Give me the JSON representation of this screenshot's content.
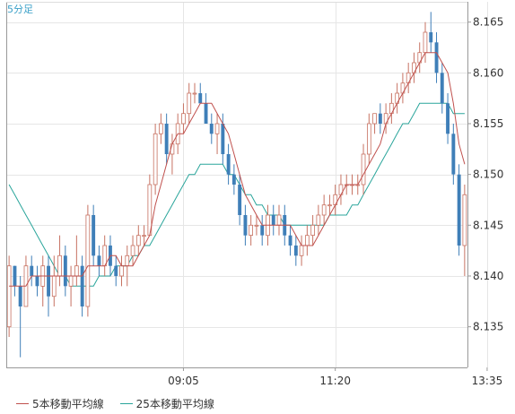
{
  "colors": {
    "candle_up_wick": "#c77262",
    "candle_down": "#3f7fb8",
    "ma5": "#c0504d",
    "ma25": "#2aa59b",
    "grid": "#e6e6e6",
    "axis": "#999999"
  },
  "chart_data": {
    "type": "candlestick",
    "period_label": "5分足",
    "ylim": [
      8.131,
      8.167
    ],
    "y_ticks": [
      "8.135",
      "8.140",
      "8.145",
      "8.150",
      "8.155",
      "8.160",
      "8.165"
    ],
    "x_tick_labels": [
      {
        "label": "09:05",
        "index": 31
      },
      {
        "label": "11:20",
        "index": 58
      },
      {
        "label": "13:35",
        "index": 85
      }
    ],
    "candles": [
      [
        8.135,
        8.142,
        8.134,
        8.141
      ],
      [
        8.141,
        8.141,
        8.138,
        8.139
      ],
      [
        8.139,
        8.14,
        8.132,
        8.137
      ],
      [
        8.137,
        8.142,
        8.137,
        8.141
      ],
      [
        8.141,
        8.142,
        8.139,
        8.14
      ],
      [
        8.14,
        8.141,
        8.138,
        8.139
      ],
      [
        8.139,
        8.142,
        8.137,
        8.141
      ],
      [
        8.141,
        8.142,
        8.136,
        8.138
      ],
      [
        8.138,
        8.142,
        8.137,
        8.14
      ],
      [
        8.14,
        8.144,
        8.139,
        8.142
      ],
      [
        8.142,
        8.143,
        8.138,
        8.139
      ],
      [
        8.139,
        8.141,
        8.137,
        8.14
      ],
      [
        8.14,
        8.144,
        8.139,
        8.141
      ],
      [
        8.141,
        8.142,
        8.136,
        8.137
      ],
      [
        8.137,
        8.147,
        8.136,
        8.146
      ],
      [
        8.146,
        8.147,
        8.141,
        8.142
      ],
      [
        8.142,
        8.143,
        8.14,
        8.141
      ],
      [
        8.141,
        8.144,
        8.14,
        8.143
      ],
      [
        8.143,
        8.144,
        8.14,
        8.141
      ],
      [
        8.141,
        8.142,
        8.139,
        8.14
      ],
      [
        8.14,
        8.142,
        8.139,
        8.141
      ],
      [
        8.141,
        8.143,
        8.139,
        8.142
      ],
      [
        8.142,
        8.144,
        8.141,
        8.143
      ],
      [
        8.143,
        8.145,
        8.142,
        8.144
      ],
      [
        8.144,
        8.145,
        8.143,
        8.144
      ],
      [
        8.144,
        8.15,
        8.144,
        8.149
      ],
      [
        8.149,
        8.155,
        8.148,
        8.154
      ],
      [
        8.154,
        8.156,
        8.153,
        8.155
      ],
      [
        8.155,
        8.156,
        8.151,
        8.152
      ],
      [
        8.152,
        8.154,
        8.15,
        8.153
      ],
      [
        8.153,
        8.156,
        8.152,
        8.155
      ],
      [
        8.155,
        8.157,
        8.154,
        8.156
      ],
      [
        8.156,
        8.159,
        8.155,
        8.158
      ],
      [
        8.158,
        8.159,
        8.157,
        8.158
      ],
      [
        8.158,
        8.159,
        8.157,
        8.157
      ],
      [
        8.157,
        8.158,
        8.155,
        8.155
      ],
      [
        8.155,
        8.156,
        8.153,
        8.154
      ],
      [
        8.154,
        8.156,
        8.152,
        8.155
      ],
      [
        8.155,
        8.156,
        8.151,
        8.152
      ],
      [
        8.152,
        8.153,
        8.149,
        8.15
      ],
      [
        8.15,
        8.151,
        8.148,
        8.149
      ],
      [
        8.149,
        8.15,
        8.145,
        8.146
      ],
      [
        8.146,
        8.147,
        8.143,
        8.144
      ],
      [
        8.144,
        8.146,
        8.143,
        8.145
      ],
      [
        8.145,
        8.146,
        8.144,
        8.145
      ],
      [
        8.145,
        8.146,
        8.143,
        8.144
      ],
      [
        8.144,
        8.147,
        8.143,
        8.146
      ],
      [
        8.146,
        8.147,
        8.144,
        8.145
      ],
      [
        8.145,
        8.147,
        8.144,
        8.146
      ],
      [
        8.146,
        8.147,
        8.143,
        8.144
      ],
      [
        8.144,
        8.145,
        8.142,
        8.143
      ],
      [
        8.143,
        8.144,
        8.141,
        8.142
      ],
      [
        8.142,
        8.144,
        8.141,
        8.143
      ],
      [
        8.143,
        8.145,
        8.142,
        8.144
      ],
      [
        8.144,
        8.146,
        8.143,
        8.145
      ],
      [
        8.145,
        8.147,
        8.144,
        8.146
      ],
      [
        8.146,
        8.148,
        8.145,
        8.147
      ],
      [
        8.147,
        8.148,
        8.146,
        8.147
      ],
      [
        8.147,
        8.149,
        8.146,
        8.148
      ],
      [
        8.148,
        8.15,
        8.147,
        8.149
      ],
      [
        8.149,
        8.15,
        8.148,
        8.149
      ],
      [
        8.149,
        8.15,
        8.148,
        8.149
      ],
      [
        8.149,
        8.15,
        8.148,
        8.149
      ],
      [
        8.149,
        8.153,
        8.148,
        8.152
      ],
      [
        8.152,
        8.156,
        8.151,
        8.155
      ],
      [
        8.155,
        8.156,
        8.154,
        8.156
      ],
      [
        8.156,
        8.157,
        8.154,
        8.155
      ],
      [
        8.155,
        8.157,
        8.154,
        8.156
      ],
      [
        8.156,
        8.158,
        8.155,
        8.157
      ],
      [
        8.157,
        8.159,
        8.156,
        8.158
      ],
      [
        8.158,
        8.16,
        8.157,
        8.159
      ],
      [
        8.159,
        8.161,
        8.158,
        8.16
      ],
      [
        8.16,
        8.162,
        8.159,
        8.161
      ],
      [
        8.161,
        8.163,
        8.16,
        8.162
      ],
      [
        8.162,
        8.165,
        8.161,
        8.164
      ],
      [
        8.164,
        8.166,
        8.162,
        8.163
      ],
      [
        8.163,
        8.164,
        8.159,
        8.16
      ],
      [
        8.16,
        8.161,
        8.156,
        8.157
      ],
      [
        8.157,
        8.158,
        8.153,
        8.154
      ],
      [
        8.154,
        8.155,
        8.149,
        8.15
      ],
      [
        8.15,
        8.151,
        8.142,
        8.143
      ],
      [
        8.143,
        8.149,
        8.14,
        8.148
      ]
    ],
    "ma5": [
      8.139,
      8.139,
      8.139,
      8.139,
      8.14,
      8.14,
      8.14,
      8.14,
      8.14,
      8.14,
      8.14,
      8.14,
      8.14,
      8.14,
      8.141,
      8.141,
      8.141,
      8.141,
      8.142,
      8.142,
      8.141,
      8.141,
      8.141,
      8.142,
      8.143,
      8.144,
      8.147,
      8.149,
      8.151,
      8.153,
      8.154,
      8.154,
      8.155,
      8.156,
      8.157,
      8.157,
      8.157,
      8.156,
      8.155,
      8.154,
      8.152,
      8.15,
      8.148,
      8.147,
      8.146,
      8.145,
      8.145,
      8.145,
      8.145,
      8.145,
      8.145,
      8.144,
      8.143,
      8.143,
      8.143,
      8.144,
      8.145,
      8.146,
      8.147,
      8.148,
      8.149,
      8.149,
      8.149,
      8.15,
      8.151,
      8.152,
      8.153,
      8.155,
      8.156,
      8.157,
      8.158,
      8.159,
      8.16,
      8.161,
      8.162,
      8.162,
      8.162,
      8.161,
      8.16,
      8.157,
      8.153,
      8.151
    ],
    "ma25": [
      8.149,
      8.148,
      8.147,
      8.146,
      8.145,
      8.144,
      8.143,
      8.142,
      8.141,
      8.14,
      8.14,
      8.139,
      8.139,
      8.139,
      8.139,
      8.139,
      8.14,
      8.14,
      8.14,
      8.141,
      8.141,
      8.141,
      8.142,
      8.142,
      8.143,
      8.143,
      8.144,
      8.145,
      8.146,
      8.147,
      8.148,
      8.149,
      8.15,
      8.15,
      8.151,
      8.151,
      8.151,
      8.151,
      8.151,
      8.15,
      8.15,
      8.149,
      8.148,
      8.148,
      8.147,
      8.147,
      8.146,
      8.146,
      8.146,
      8.145,
      8.145,
      8.145,
      8.145,
      8.145,
      8.145,
      8.145,
      8.145,
      8.146,
      8.146,
      8.146,
      8.146,
      8.147,
      8.147,
      8.148,
      8.149,
      8.15,
      8.151,
      8.152,
      8.153,
      8.154,
      8.155,
      8.155,
      8.156,
      8.157,
      8.157,
      8.157,
      8.157,
      8.157,
      8.157,
      8.156,
      8.156,
      8.156
    ],
    "legend": [
      {
        "key": "ma5",
        "label": "5本移動平均線"
      },
      {
        "key": "ma25",
        "label": "25本移動平均線"
      }
    ]
  }
}
